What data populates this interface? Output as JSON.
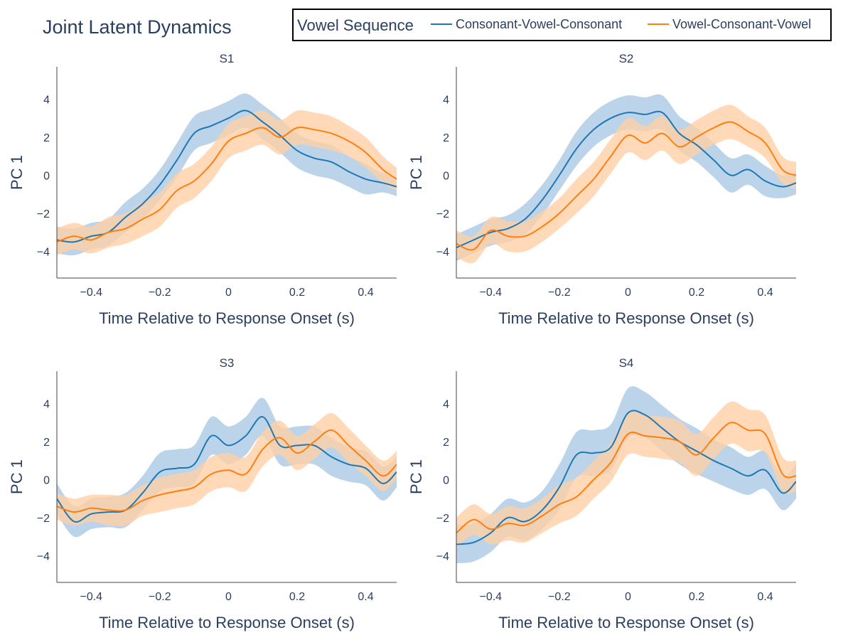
{
  "title": "Joint Latent Dynamics",
  "legend": {
    "title": "Vowel Sequence",
    "entries": [
      {
        "label": "Consonant-Vowel-Consonant",
        "color": "#1f77b4",
        "band_color": "#aac9e3"
      },
      {
        "label": "Vowel-Consonant-Vowel",
        "color": "#ff7f0e",
        "band_color": "#ffd0a6"
      }
    ]
  },
  "chart_data": [
    {
      "type": "line",
      "title": "S1",
      "xlabel": "Time Relative to Response Onset (s)",
      "ylabel": "PC 1",
      "xlim": [
        -0.5,
        0.49
      ],
      "ylim": [
        -5.4,
        5.7
      ],
      "xticks": [
        -0.4,
        -0.2,
        0,
        0.2,
        0.4
      ],
      "yticks": [
        -4,
        -2,
        0,
        2,
        4
      ],
      "series": [
        {
          "name": "Consonant-Vowel-Consonant",
          "x": [
            -0.5,
            -0.45,
            -0.4,
            -0.35,
            -0.3,
            -0.25,
            -0.2,
            -0.15,
            -0.1,
            -0.05,
            0,
            0.05,
            0.1,
            0.15,
            0.2,
            0.25,
            0.3,
            0.35,
            0.4,
            0.45,
            0.49
          ],
          "y": [
            -3.4,
            -3.5,
            -3.2,
            -3.0,
            -2.2,
            -1.5,
            -0.5,
            0.8,
            2.2,
            2.6,
            3.0,
            3.4,
            2.8,
            2.1,
            1.3,
            0.9,
            0.7,
            0.2,
            -0.2,
            -0.4,
            -0.6
          ],
          "band": [
            0.7,
            0.7,
            0.7,
            0.7,
            0.8,
            0.8,
            0.8,
            0.9,
            0.9,
            0.9,
            0.9,
            0.9,
            0.9,
            0.9,
            0.9,
            0.9,
            0.9,
            0.8,
            0.8,
            0.5,
            0.5
          ]
        },
        {
          "name": "Vowel-Consonant-Vowel",
          "x": [
            -0.5,
            -0.45,
            -0.4,
            -0.35,
            -0.3,
            -0.25,
            -0.2,
            -0.15,
            -0.1,
            -0.05,
            0,
            0.05,
            0.1,
            0.15,
            0.2,
            0.25,
            0.3,
            0.35,
            0.4,
            0.45,
            0.49
          ],
          "y": [
            -3.5,
            -3.2,
            -3.4,
            -3.0,
            -2.8,
            -2.3,
            -1.8,
            -0.8,
            -0.3,
            0.6,
            1.8,
            2.2,
            2.5,
            2.0,
            2.5,
            2.4,
            2.2,
            1.8,
            1.2,
            0.3,
            -0.2
          ],
          "band": [
            0.7,
            0.7,
            0.7,
            0.8,
            0.8,
            0.9,
            0.9,
            0.9,
            0.9,
            0.9,
            0.9,
            0.9,
            0.9,
            0.9,
            0.9,
            0.9,
            0.9,
            0.8,
            0.8,
            0.7,
            0.6
          ]
        }
      ]
    },
    {
      "type": "line",
      "title": "S2",
      "xlabel": "Time Relative to Response Onset (s)",
      "ylabel": "PC 1",
      "xlim": [
        -0.5,
        0.49
      ],
      "ylim": [
        -5.4,
        5.7
      ],
      "xticks": [
        -0.4,
        -0.2,
        0,
        0.2,
        0.4
      ],
      "yticks": [
        -4,
        -2,
        0,
        2,
        4
      ],
      "series": [
        {
          "name": "Consonant-Vowel-Consonant",
          "x": [
            -0.5,
            -0.45,
            -0.4,
            -0.35,
            -0.3,
            -0.25,
            -0.2,
            -0.15,
            -0.1,
            -0.05,
            0,
            0.05,
            0.1,
            0.15,
            0.2,
            0.25,
            0.3,
            0.35,
            0.4,
            0.45,
            0.49
          ],
          "y": [
            -3.8,
            -3.4,
            -3.0,
            -2.8,
            -2.3,
            -1.3,
            0.0,
            1.4,
            2.4,
            3.0,
            3.3,
            3.2,
            3.3,
            2.2,
            1.6,
            0.8,
            0.0,
            0.3,
            -0.3,
            -0.6,
            -0.4
          ],
          "band": [
            0.7,
            0.7,
            0.7,
            0.7,
            0.8,
            0.8,
            0.8,
            0.9,
            0.9,
            0.9,
            0.9,
            0.9,
            0.9,
            0.9,
            0.9,
            0.9,
            0.9,
            0.8,
            0.8,
            0.6,
            0.6
          ]
        },
        {
          "name": "Vowel-Consonant-Vowel",
          "x": [
            -0.5,
            -0.45,
            -0.4,
            -0.35,
            -0.3,
            -0.25,
            -0.2,
            -0.15,
            -0.1,
            -0.05,
            0,
            0.05,
            0.1,
            0.15,
            0.2,
            0.25,
            0.3,
            0.35,
            0.4,
            0.45,
            0.49
          ],
          "y": [
            -3.6,
            -3.9,
            -2.9,
            -3.2,
            -3.2,
            -2.7,
            -2.0,
            -1.1,
            -0.2,
            1.0,
            2.1,
            1.7,
            2.2,
            1.5,
            2.0,
            2.5,
            2.8,
            2.3,
            1.7,
            0.3,
            0.0
          ],
          "band": [
            0.7,
            0.7,
            0.7,
            0.8,
            0.8,
            0.8,
            0.8,
            0.9,
            0.9,
            0.9,
            0.9,
            0.9,
            0.9,
            0.9,
            0.9,
            0.9,
            0.9,
            0.8,
            0.8,
            0.7,
            0.7
          ]
        }
      ]
    },
    {
      "type": "line",
      "title": "S3",
      "xlabel": "Time Relative to Response Onset (s)",
      "ylabel": "PC 1",
      "xlim": [
        -0.5,
        0.49
      ],
      "ylim": [
        -5.4,
        5.7
      ],
      "xticks": [
        -0.4,
        -0.2,
        0,
        0.2,
        0.4
      ],
      "yticks": [
        -4,
        -2,
        0,
        2,
        4
      ],
      "series": [
        {
          "name": "Consonant-Vowel-Consonant",
          "x": [
            -0.5,
            -0.45,
            -0.4,
            -0.35,
            -0.3,
            -0.25,
            -0.2,
            -0.15,
            -0.1,
            -0.05,
            0,
            0.05,
            0.1,
            0.15,
            0.2,
            0.25,
            0.3,
            0.35,
            0.4,
            0.45,
            0.49
          ],
          "y": [
            -1.0,
            -2.2,
            -1.8,
            -1.7,
            -1.6,
            -0.7,
            0.4,
            0.6,
            0.8,
            2.3,
            1.8,
            2.3,
            3.3,
            1.8,
            1.8,
            1.8,
            1.2,
            0.8,
            0.6,
            -0.2,
            0.4
          ],
          "band": [
            0.8,
            0.8,
            0.8,
            0.8,
            0.9,
            0.9,
            1.0,
            1.0,
            1.0,
            1.0,
            1.0,
            1.0,
            1.0,
            1.0,
            1.0,
            1.0,
            1.0,
            0.9,
            0.9,
            0.9,
            0.8
          ]
        },
        {
          "name": "Vowel-Consonant-Vowel",
          "x": [
            -0.5,
            -0.45,
            -0.4,
            -0.35,
            -0.3,
            -0.25,
            -0.2,
            -0.15,
            -0.1,
            -0.05,
            0,
            0.05,
            0.1,
            0.15,
            0.2,
            0.25,
            0.3,
            0.35,
            0.4,
            0.45,
            0.49
          ],
          "y": [
            -1.4,
            -1.7,
            -1.5,
            -1.6,
            -1.6,
            -1.1,
            -0.8,
            -0.6,
            -0.4,
            0.3,
            0.5,
            0.3,
            1.6,
            2.2,
            1.4,
            2.0,
            2.6,
            1.8,
            1.0,
            0.2,
            0.8
          ],
          "band": [
            0.7,
            0.7,
            0.7,
            0.8,
            0.8,
            0.8,
            0.9,
            0.9,
            0.9,
            0.9,
            0.9,
            0.9,
            0.9,
            0.9,
            0.9,
            0.9,
            0.9,
            0.9,
            0.8,
            0.8,
            0.7
          ]
        }
      ]
    },
    {
      "type": "line",
      "title": "S4",
      "xlabel": "Time Relative to Response Onset (s)",
      "ylabel": "PC 1",
      "xlim": [
        -0.5,
        0.49
      ],
      "ylim": [
        -5.4,
        5.7
      ],
      "xticks": [
        -0.4,
        -0.2,
        0,
        0.2,
        0.4
      ],
      "yticks": [
        -4,
        -2,
        0,
        2,
        4
      ],
      "series": [
        {
          "name": "Consonant-Vowel-Consonant",
          "x": [
            -0.5,
            -0.45,
            -0.4,
            -0.35,
            -0.3,
            -0.25,
            -0.2,
            -0.15,
            -0.1,
            -0.05,
            0,
            0.05,
            0.1,
            0.15,
            0.2,
            0.25,
            0.3,
            0.35,
            0.4,
            0.45,
            0.49
          ],
          "y": [
            -3.4,
            -3.3,
            -2.8,
            -2.0,
            -2.2,
            -1.6,
            -0.4,
            1.3,
            1.4,
            1.7,
            3.5,
            3.4,
            2.7,
            2.0,
            1.5,
            1.0,
            0.6,
            0.2,
            0.5,
            -0.7,
            -0.1
          ],
          "band": [
            1.0,
            1.0,
            1.0,
            1.0,
            1.0,
            1.0,
            1.2,
            1.2,
            1.2,
            1.2,
            1.3,
            1.2,
            1.2,
            1.2,
            1.2,
            1.1,
            1.1,
            1.0,
            1.0,
            0.9,
            0.9
          ]
        },
        {
          "name": "Vowel-Consonant-Vowel",
          "x": [
            -0.5,
            -0.45,
            -0.4,
            -0.35,
            -0.3,
            -0.25,
            -0.2,
            -0.15,
            -0.1,
            -0.05,
            0,
            0.05,
            0.1,
            0.15,
            0.2,
            0.25,
            0.3,
            0.35,
            0.4,
            0.45,
            0.49
          ],
          "y": [
            -2.8,
            -2.1,
            -2.6,
            -2.3,
            -2.4,
            -1.9,
            -1.3,
            -0.9,
            0.0,
            0.9,
            2.4,
            2.3,
            2.2,
            2.0,
            1.3,
            2.2,
            3.0,
            2.6,
            2.4,
            0.3,
            0.2
          ],
          "band": [
            0.8,
            0.8,
            0.8,
            0.9,
            0.9,
            0.9,
            1.0,
            1.0,
            1.0,
            1.0,
            1.1,
            1.1,
            1.1,
            1.1,
            1.1,
            1.1,
            1.1,
            1.1,
            1.0,
            0.9,
            0.8
          ]
        }
      ]
    }
  ]
}
